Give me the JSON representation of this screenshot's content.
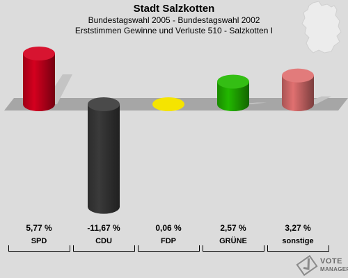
{
  "header": {
    "title": "Stadt Salzkotten",
    "subtitle1": "Bundestagswahl 2005 - Bundestagswahl 2002",
    "subtitle2": "Erststimmen Gewinne und Verluste 510 - Salzkotten I"
  },
  "chart_data": {
    "type": "bar",
    "title": "Stadt Salzkotten",
    "categories": [
      "SPD",
      "CDU",
      "FDP",
      "GRÜNE",
      "sonstige"
    ],
    "values": [
      5.77,
      -11.67,
      0.06,
      2.57,
      3.27
    ],
    "value_labels": [
      "5,77 %",
      "-11,67 %",
      "0,06 %",
      "2,57 %",
      "3,27 %"
    ],
    "colors": [
      "#d4001e",
      "#3a3a3a",
      "#f5e400",
      "#22b800",
      "#e07070"
    ],
    "ylim": [
      -13,
      7
    ],
    "xlabel": "",
    "ylabel": "",
    "grid": false,
    "legend": "none"
  },
  "watermark": {
    "line1": "VOTE",
    "line2": "MANAGER"
  }
}
